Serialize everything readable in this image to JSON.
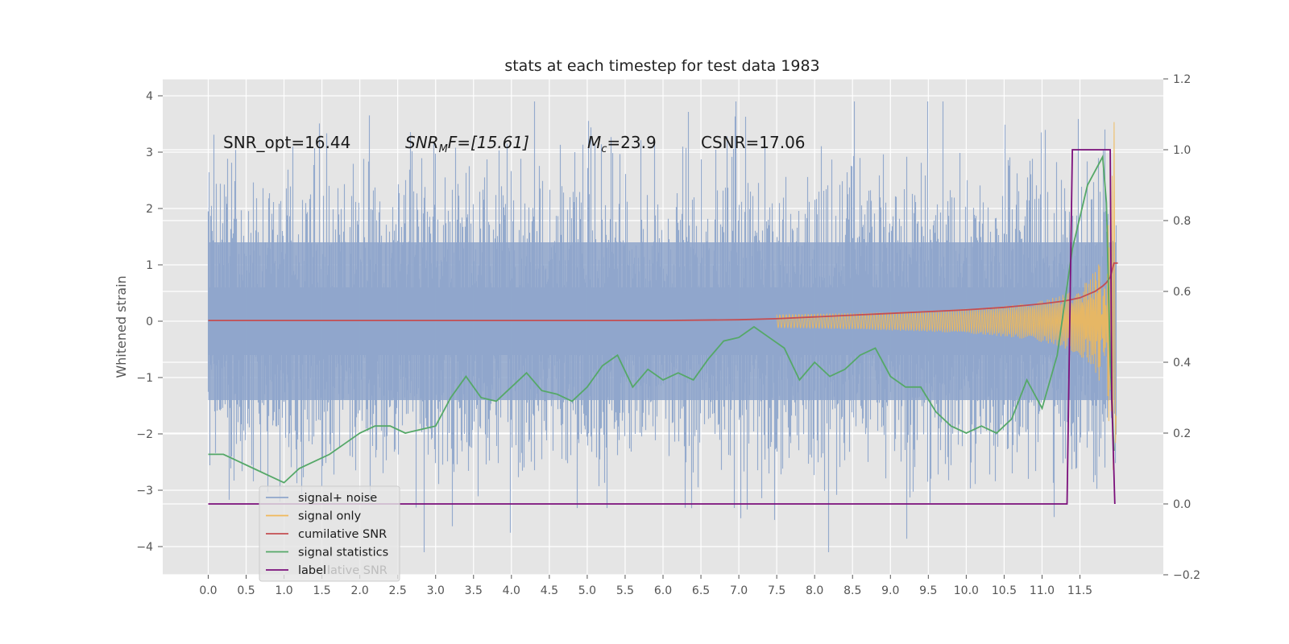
{
  "chart_data": {
    "type": "line",
    "title": "stats at each timestep for test data 1983",
    "ylabel": "Whitened strain",
    "xlabel": "",
    "xlim": [
      -0.6,
      12.6
    ],
    "ylim": [
      -4.5,
      4.3
    ],
    "y2lim": [
      -0.2,
      1.2
    ],
    "x_ticks": [
      "0.0",
      "0.5",
      "1.0",
      "1.5",
      "2.0",
      "2.5",
      "3.0",
      "3.5",
      "4.0",
      "4.5",
      "5.0",
      "5.5",
      "6.0",
      "6.5",
      "7.0",
      "7.5",
      "8.0",
      "8.5",
      "9.0",
      "9.5",
      "10.0",
      "10.5",
      "11.0",
      "11.5"
    ],
    "y_ticks": [
      "4",
      "3",
      "2",
      "1",
      "0",
      "−1",
      "−2",
      "−3",
      "−4"
    ],
    "y2_ticks": [
      "1.2",
      "1.0",
      "0.8",
      "0.6",
      "0.4",
      "0.2",
      "0.0",
      "−0.2"
    ],
    "annotations": {
      "snr_opt": "SNR_opt=16.44",
      "snr_mf_base": "SNR",
      "snr_mf_sub": "M",
      "snr_mf_rest": "F=[15.61]",
      "mc_base": "M",
      "mc_sub": "c",
      "mc_rest": "=23.9",
      "csnr": "CSNR=17.06"
    },
    "grid": true,
    "legend_position": "lower-left",
    "series": [
      {
        "name": "signal+ noise",
        "color": "#8fa6cb",
        "axis": "left",
        "kind": "noise",
        "envelope_sd": 1.0,
        "x_range": [
          0.0,
          11.98
        ]
      },
      {
        "name": "signal only",
        "color": "#f0b95a",
        "axis": "left",
        "kind": "chirp",
        "x_range": [
          7.5,
          11.98
        ],
        "peak": 3.6
      },
      {
        "name": "cumilative SNR",
        "color": "#c44e52",
        "axis": "right",
        "x": [
          0.0,
          2.0,
          4.0,
          6.0,
          7.0,
          7.5,
          8.0,
          8.5,
          9.0,
          9.5,
          10.0,
          10.5,
          11.0,
          11.3,
          11.5,
          11.7,
          11.8,
          11.85,
          11.9,
          11.95,
          12.0
        ],
        "values": [
          0.518,
          0.518,
          0.518,
          0.518,
          0.52,
          0.523,
          0.528,
          0.533,
          0.538,
          0.543,
          0.548,
          0.555,
          0.565,
          0.573,
          0.582,
          0.6,
          0.615,
          0.625,
          0.64,
          0.68,
          0.68
        ]
      },
      {
        "name": "signal statistics",
        "color": "#55a868",
        "axis": "right",
        "x": [
          0.0,
          0.2,
          0.4,
          0.6,
          0.8,
          1.0,
          1.2,
          1.4,
          1.6,
          1.8,
          2.0,
          2.2,
          2.4,
          2.6,
          2.8,
          3.0,
          3.2,
          3.4,
          3.6,
          3.8,
          4.0,
          4.2,
          4.4,
          4.6,
          4.8,
          5.0,
          5.2,
          5.4,
          5.6,
          5.8,
          6.0,
          6.2,
          6.4,
          6.6,
          6.8,
          7.0,
          7.2,
          7.4,
          7.6,
          7.8,
          8.0,
          8.2,
          8.4,
          8.6,
          8.8,
          9.0,
          9.2,
          9.4,
          9.6,
          9.8,
          10.0,
          10.2,
          10.4,
          10.6,
          10.8,
          11.0,
          11.2,
          11.4,
          11.6,
          11.8,
          11.85,
          11.9,
          11.95
        ],
        "values": [
          0.14,
          0.14,
          0.12,
          0.1,
          0.08,
          0.06,
          0.1,
          0.12,
          0.14,
          0.17,
          0.2,
          0.22,
          0.22,
          0.2,
          0.21,
          0.22,
          0.3,
          0.36,
          0.3,
          0.29,
          0.33,
          0.37,
          0.32,
          0.31,
          0.29,
          0.33,
          0.39,
          0.42,
          0.33,
          0.38,
          0.35,
          0.37,
          0.35,
          0.41,
          0.46,
          0.47,
          0.5,
          0.47,
          0.44,
          0.35,
          0.4,
          0.36,
          0.38,
          0.42,
          0.44,
          0.36,
          0.33,
          0.33,
          0.26,
          0.22,
          0.2,
          0.22,
          0.2,
          0.24,
          0.35,
          0.27,
          0.42,
          0.72,
          0.9,
          0.98,
          0.85,
          0.4,
          0.15
        ]
      },
      {
        "name": "label",
        "color": "#7b0f7b",
        "axis": "right",
        "x": [
          0.0,
          11.33,
          11.4,
          11.9,
          11.92,
          11.96
        ],
        "values": [
          0.0,
          0.0,
          1.0,
          1.0,
          0.3,
          0.0
        ]
      }
    ],
    "legend_ghost_text": "lative SNR"
  }
}
